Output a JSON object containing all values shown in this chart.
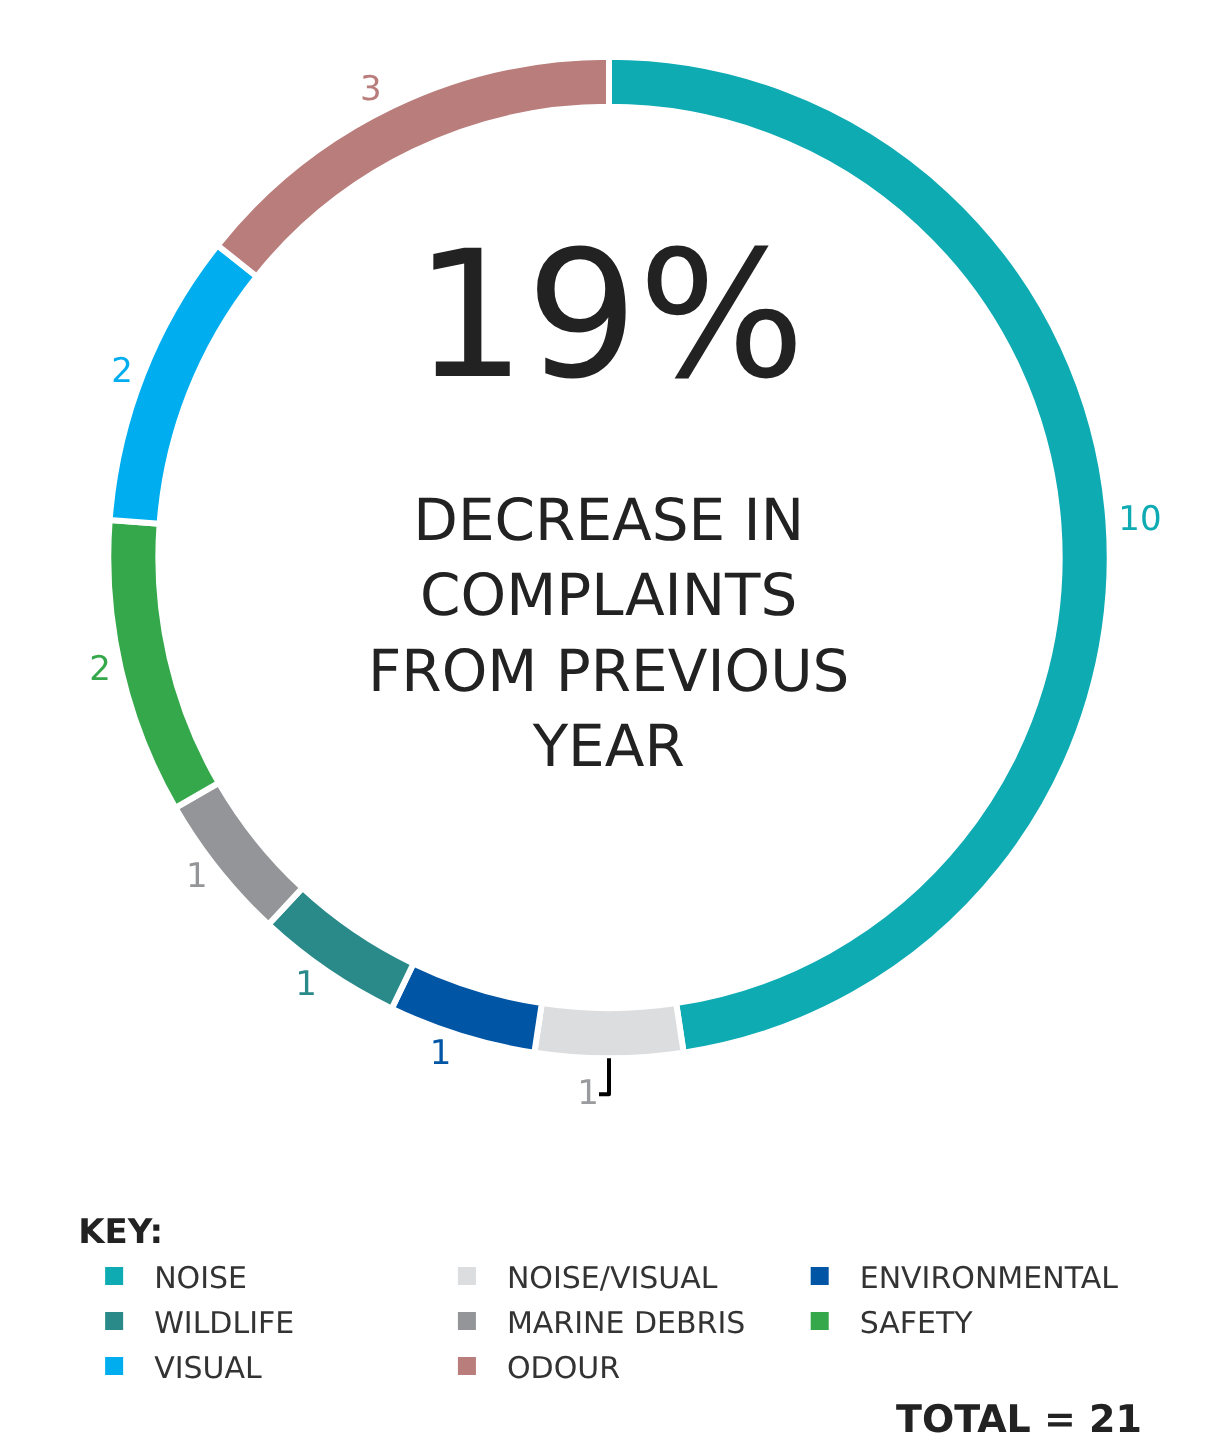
{
  "chart_data": {
    "type": "donut",
    "categories": [
      "NOISE",
      "NOISE/VISUAL",
      "ENVIRONMENTAL",
      "WILDLIFE",
      "MARINE DEBRIS",
      "SAFETY",
      "VISUAL",
      "ODOUR"
    ],
    "values": [
      10,
      1,
      1,
      1,
      1,
      2,
      2,
      3
    ],
    "colors": [
      "#0eabb3",
      "#dcdddf",
      "#0055a5",
      "#2a8a8a",
      "#939598",
      "#34a84a",
      "#00aeef",
      "#b97d7b"
    ],
    "data_labels": true,
    "legend": "bottom",
    "legend_title": "KEY:",
    "annotations": [
      "19%",
      "DECREASE IN COMPLAINTS FROM PREVIOUS YEAR",
      "TOTAL = 21"
    ]
  }
}
